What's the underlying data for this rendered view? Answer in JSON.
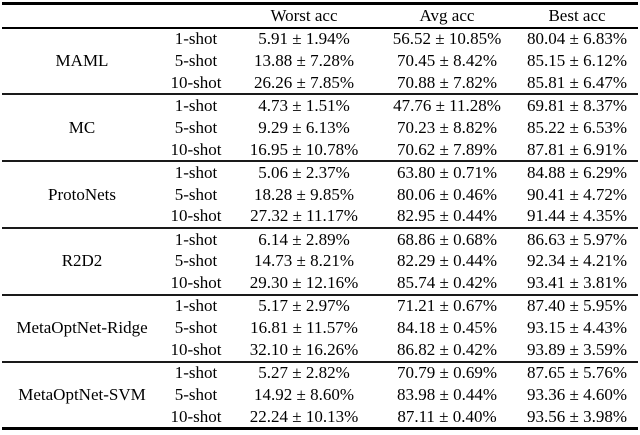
{
  "table": {
    "headers": {
      "worst": "Worst acc",
      "avg": "Avg acc",
      "best": "Best acc"
    },
    "groups": [
      {
        "method": "MAML",
        "rows": [
          {
            "shot": "1-shot",
            "worst": "5.91 ± 1.94%",
            "avg": "56.52 ± 10.85%",
            "best": "80.04 ± 6.83%"
          },
          {
            "shot": "5-shot",
            "worst": "13.88 ± 7.28%",
            "avg": "70.45 ± 8.42%",
            "best": "85.15 ± 6.12%"
          },
          {
            "shot": "10-shot",
            "worst": "26.26 ± 7.85%",
            "avg": "70.88 ± 7.82%",
            "best": "85.81 ± 6.47%"
          }
        ]
      },
      {
        "method": "MC",
        "rows": [
          {
            "shot": "1-shot",
            "worst": "4.73 ± 1.51%",
            "avg": "47.76 ± 11.28%",
            "best": "69.81 ± 8.37%"
          },
          {
            "shot": "5-shot",
            "worst": "9.29 ± 6.13%",
            "avg": "70.23 ± 8.82%",
            "best": "85.22 ± 6.53%"
          },
          {
            "shot": "10-shot",
            "worst": "16.95 ± 10.78%",
            "avg": "70.62 ± 7.89%",
            "best": "87.81 ± 6.91%"
          }
        ]
      },
      {
        "method": "ProtoNets",
        "rows": [
          {
            "shot": "1-shot",
            "worst": "5.06 ± 2.37%",
            "avg": "63.80 ± 0.71%",
            "best": "84.88 ± 6.29%"
          },
          {
            "shot": "5-shot",
            "worst": "18.28 ± 9.85%",
            "avg": "80.06 ± 0.46%",
            "best": "90.41 ± 4.72%"
          },
          {
            "shot": "10-shot",
            "worst": "27.32 ± 11.17%",
            "avg": "82.95 ± 0.44%",
            "best": "91.44 ± 4.35%"
          }
        ]
      },
      {
        "method": "R2D2",
        "rows": [
          {
            "shot": "1-shot",
            "worst": "6.14 ± 2.89%",
            "avg": "68.86 ± 0.68%",
            "best": "86.63 ± 5.97%"
          },
          {
            "shot": "5-shot",
            "worst": "14.73 ± 8.21%",
            "avg": "82.29 ± 0.44%",
            "best": "92.34 ± 4.21%"
          },
          {
            "shot": "10-shot",
            "worst": "29.30 ± 12.16%",
            "avg": "85.74 ± 0.42%",
            "best": "93.41 ± 3.81%"
          }
        ]
      },
      {
        "method": "MetaOptNet-Ridge",
        "rows": [
          {
            "shot": "1-shot",
            "worst": "5.17 ± 2.97%",
            "avg": "71.21 ± 0.67%",
            "best": "87.40 ± 5.95%"
          },
          {
            "shot": "5-shot",
            "worst": "16.81 ± 11.57%",
            "avg": "84.18 ± 0.45%",
            "best": "93.15 ± 4.43%"
          },
          {
            "shot": "10-shot",
            "worst": "32.10 ± 16.26%",
            "avg": "86.82 ± 0.42%",
            "best": "93.89 ± 3.59%"
          }
        ]
      },
      {
        "method": "MetaOptNet-SVM",
        "rows": [
          {
            "shot": "1-shot",
            "worst": "5.27 ± 2.82%",
            "avg": "70.79 ± 0.69%",
            "best": "87.65 ± 5.76%"
          },
          {
            "shot": "5-shot",
            "worst": "14.92 ± 8.60%",
            "avg": "83.98 ± 0.44%",
            "best": "93.36 ± 4.60%"
          },
          {
            "shot": "10-shot",
            "worst": "22.24 ± 10.13%",
            "avg": "87.11 ± 0.40%",
            "best": "93.56 ± 3.98%"
          }
        ]
      }
    ]
  }
}
